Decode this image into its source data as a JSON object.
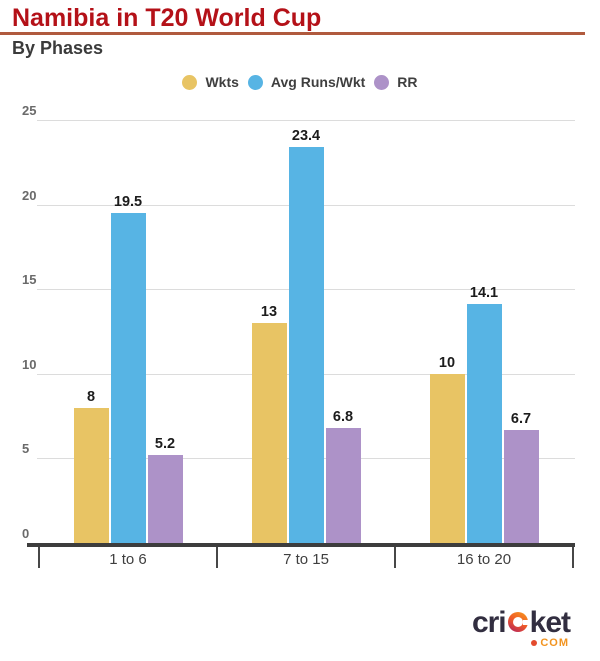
{
  "title": "Namibia in T20 World Cup",
  "subtitle": "By Phases",
  "legend": [
    {
      "label": "Wkts",
      "color": "#e8c464"
    },
    {
      "label": "Avg Runs/Wkt",
      "color": "#57b4e4"
    },
    {
      "label": "RR",
      "color": "#ad92c8"
    }
  ],
  "chart_data": {
    "type": "bar",
    "title": "Namibia in T20 World Cup",
    "subtitle": "By Phases",
    "categories": [
      "1 to 6",
      "7 to 15",
      "16 to 20"
    ],
    "series": [
      {
        "name": "Wkts",
        "color": "#e8c464",
        "values": [
          8,
          13,
          10
        ],
        "labels": [
          "8",
          "13",
          "10"
        ]
      },
      {
        "name": "Avg Runs/Wkt",
        "color": "#57b4e4",
        "values": [
          19.5,
          23.4,
          14.1
        ],
        "labels": [
          "19.5",
          "23.4",
          "14.1"
        ]
      },
      {
        "name": "RR",
        "color": "#ad92c8",
        "values": [
          5.2,
          6.8,
          6.7
        ],
        "labels": [
          "5.2",
          "6.8",
          "6.7"
        ]
      }
    ],
    "ylim": [
      0,
      25
    ],
    "yticks": [
      0,
      5,
      10,
      15,
      20,
      25
    ],
    "grid": true,
    "legend_position": "top",
    "xlabel": "",
    "ylabel": ""
  },
  "colors": {
    "title": "#b41118",
    "title_rule": "#b05a3e",
    "axis_line": "#3d3d3d",
    "gridline": "#dcdcdc",
    "tick_label": "#6a6a6a",
    "category_label": "#3f3f3f",
    "value_label": "#1c1c1c"
  },
  "branding": {
    "wordmark_part1": "cri",
    "wordmark_part2": "ket",
    "tld": "COM",
    "wordmark_color": "#322e40",
    "accent_orange": "#f29420",
    "accent_red": "#e34b2e"
  }
}
